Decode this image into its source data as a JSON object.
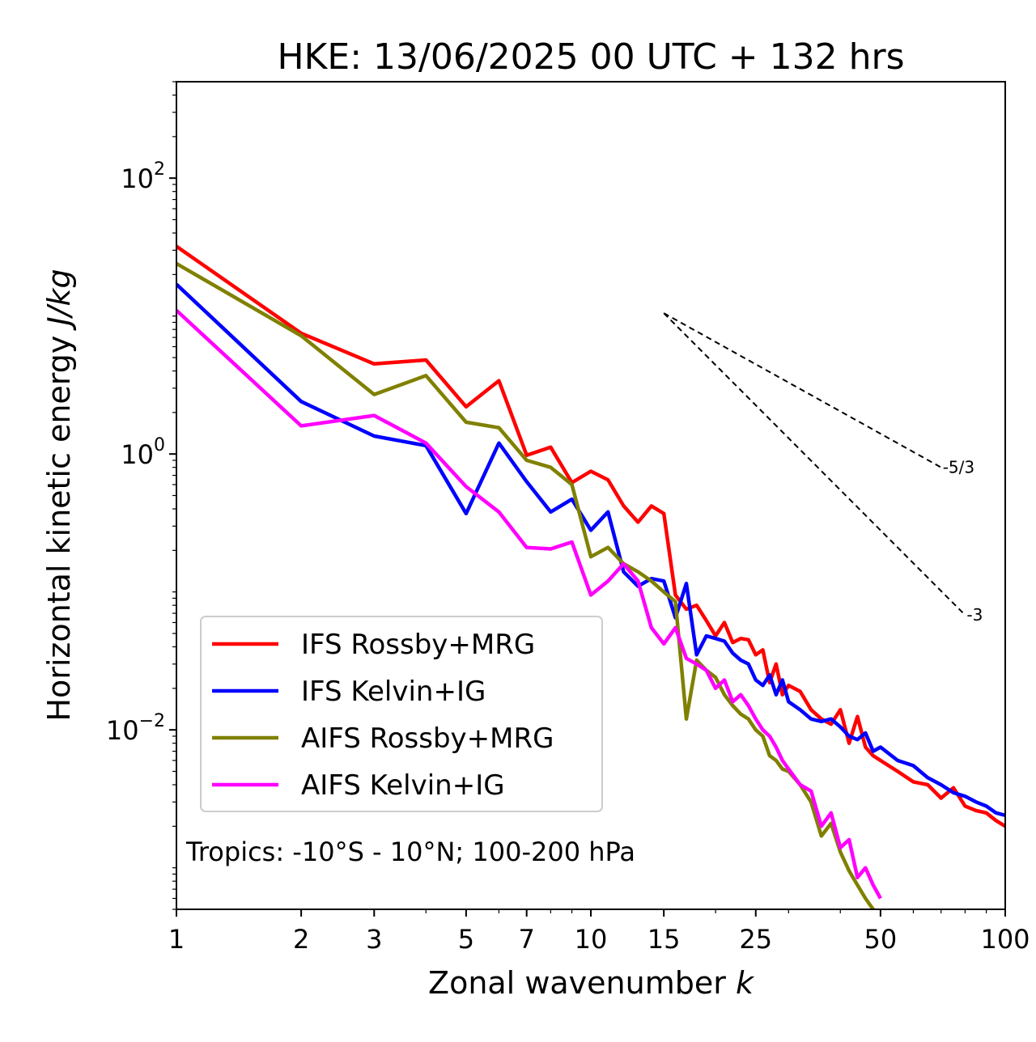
{
  "chart_data": {
    "type": "line",
    "title": "HKE: 13/06/2025 00 UTC + 132 hrs",
    "xlabel": "Zonal wavenumber",
    "xlabel_var": "k",
    "ylabel": "Horizontal kinetic energy",
    "ylabel_unit": "J/kg",
    "xscale": "log",
    "yscale": "log",
    "xlim": [
      1,
      100
    ],
    "ylim": [
      0.0005,
      500
    ],
    "xticks": [
      1,
      2,
      3,
      5,
      7,
      10,
      15,
      25,
      50,
      100
    ],
    "xtick_labels": [
      "1",
      "2",
      "3",
      "5",
      "7",
      "10",
      "15",
      "25",
      "50",
      "100"
    ],
    "yticks": [
      0.01,
      1,
      100
    ],
    "ytick_labels": [
      {
        "base": "10",
        "exp": "−2"
      },
      {
        "base": "10",
        "exp": "0"
      },
      {
        "base": "10",
        "exp": "2"
      }
    ],
    "grid": false,
    "legend": "lower-left",
    "annotation": "Tropics: -10°S - 10°N; 100-200 hPa",
    "reference_lines": [
      {
        "label": "-5/3",
        "slope": -1.6667,
        "x_start": 15,
        "y_start": 10.5,
        "x_end": 70,
        "y_end": 0.8
      },
      {
        "label": "-3",
        "slope": -3,
        "x_start": 15,
        "y_start": 10.5,
        "x_end": 80,
        "y_end": 0.068
      }
    ],
    "series": [
      {
        "name": "IFS Rossby+MRG",
        "color": "#ff0000",
        "x": [
          1,
          2,
          3,
          4,
          5,
          6,
          7,
          8,
          9,
          10,
          11,
          12,
          13,
          14,
          15,
          16,
          17,
          18,
          19,
          20,
          21,
          22,
          23,
          24,
          25,
          26,
          27,
          28,
          29,
          30,
          32,
          34,
          36,
          38,
          40,
          42,
          44,
          46,
          48,
          50,
          55,
          60,
          65,
          70,
          75,
          80,
          85,
          90,
          95,
          100
        ],
        "y": [
          32,
          7.5,
          4.5,
          4.8,
          2.2,
          3.4,
          0.98,
          1.12,
          0.62,
          0.75,
          0.65,
          0.42,
          0.32,
          0.42,
          0.37,
          0.095,
          0.075,
          0.08,
          0.062,
          0.048,
          0.06,
          0.043,
          0.046,
          0.045,
          0.035,
          0.038,
          0.022,
          0.03,
          0.018,
          0.021,
          0.019,
          0.014,
          0.012,
          0.011,
          0.014,
          0.008,
          0.0125,
          0.0075,
          0.0065,
          0.006,
          0.005,
          0.0042,
          0.004,
          0.0032,
          0.0038,
          0.0028,
          0.0026,
          0.0025,
          0.0022,
          0.002
        ]
      },
      {
        "name": "IFS Kelvin+IG",
        "color": "#0000ff",
        "x": [
          1,
          2,
          3,
          4,
          5,
          6,
          7,
          8,
          9,
          10,
          11,
          12,
          13,
          14,
          15,
          16,
          17,
          18,
          19,
          20,
          21,
          22,
          23,
          24,
          25,
          26,
          27,
          28,
          29,
          30,
          32,
          34,
          36,
          38,
          40,
          42,
          44,
          46,
          48,
          50,
          55,
          60,
          65,
          70,
          75,
          80,
          85,
          90,
          95,
          100
        ],
        "y": [
          17,
          2.4,
          1.35,
          1.15,
          0.37,
          1.2,
          0.63,
          0.38,
          0.47,
          0.28,
          0.38,
          0.14,
          0.11,
          0.125,
          0.12,
          0.065,
          0.115,
          0.035,
          0.048,
          0.046,
          0.044,
          0.036,
          0.032,
          0.03,
          0.023,
          0.021,
          0.025,
          0.018,
          0.023,
          0.016,
          0.014,
          0.012,
          0.0115,
          0.012,
          0.0105,
          0.009,
          0.0085,
          0.0095,
          0.007,
          0.0075,
          0.006,
          0.0055,
          0.0045,
          0.004,
          0.0035,
          0.0033,
          0.003,
          0.0028,
          0.0025,
          0.0024
        ]
      },
      {
        "name": "AIFS Rossby+MRG",
        "color": "#808000",
        "x": [
          1,
          2,
          3,
          4,
          5,
          6,
          7,
          8,
          9,
          10,
          11,
          12,
          13,
          14,
          15,
          16,
          17,
          18,
          19,
          20,
          21,
          22,
          23,
          24,
          25,
          26,
          27,
          28,
          29,
          30,
          32,
          34,
          36,
          38,
          40,
          42,
          44,
          46,
          48,
          50
        ],
        "y": [
          24,
          7.2,
          2.7,
          3.7,
          1.7,
          1.55,
          0.9,
          0.8,
          0.6,
          0.18,
          0.21,
          0.16,
          0.14,
          0.12,
          0.1,
          0.085,
          0.012,
          0.032,
          0.027,
          0.024,
          0.018,
          0.015,
          0.013,
          0.012,
          0.01,
          0.009,
          0.0065,
          0.006,
          0.0052,
          0.005,
          0.004,
          0.003,
          0.0017,
          0.0021,
          0.0013,
          0.00095,
          0.00075,
          0.0006,
          0.0005,
          0.00045
        ]
      },
      {
        "name": "AIFS Kelvin+IG",
        "color": "#ff00ff",
        "x": [
          1,
          2,
          3,
          4,
          5,
          6,
          7,
          8,
          9,
          10,
          11,
          12,
          13,
          14,
          15,
          16,
          17,
          18,
          19,
          20,
          21,
          22,
          23,
          24,
          25,
          26,
          27,
          28,
          29,
          30,
          32,
          34,
          36,
          38,
          40,
          42,
          44,
          46,
          48,
          50
        ],
        "y": [
          11,
          1.6,
          1.9,
          1.2,
          0.58,
          0.38,
          0.21,
          0.205,
          0.23,
          0.095,
          0.12,
          0.16,
          0.12,
          0.055,
          0.042,
          0.055,
          0.033,
          0.03,
          0.027,
          0.02,
          0.023,
          0.016,
          0.018,
          0.015,
          0.012,
          0.01,
          0.009,
          0.0075,
          0.006,
          0.0052,
          0.004,
          0.0036,
          0.002,
          0.0025,
          0.0014,
          0.0016,
          0.00085,
          0.001,
          0.00075,
          0.0006
        ]
      }
    ]
  }
}
